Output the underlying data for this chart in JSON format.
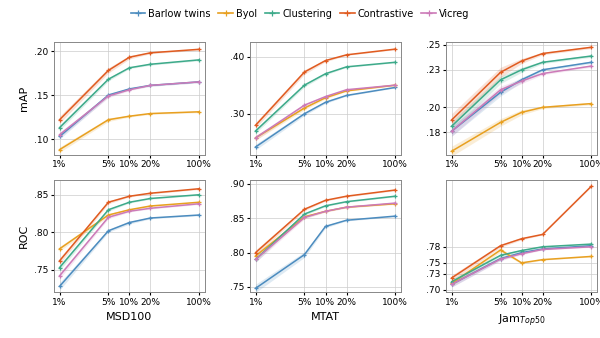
{
  "x_labels": [
    "1%",
    "5%",
    "10%",
    "20%",
    "100%"
  ],
  "x_vals_log": [
    1,
    5,
    10,
    20,
    100
  ],
  "methods": [
    "Barlow twins",
    "Byol",
    "Clustering",
    "Contrastive",
    "Vicreg"
  ],
  "colors": {
    "Barlow twins": "#4c8cbf",
    "Byol": "#e8a020",
    "Clustering": "#3daa8a",
    "Contrastive": "#e05b20",
    "Vicreg": "#cc7ab8"
  },
  "actual_data": {
    "MSD100_mAP": {
      "Barlow twins": [
        0.103,
        0.15,
        0.157,
        0.161,
        0.165
      ],
      "Byol": [
        0.088,
        0.122,
        0.126,
        0.129,
        0.131
      ],
      "Clustering": [
        0.113,
        0.168,
        0.181,
        0.185,
        0.19
      ],
      "Contrastive": [
        0.122,
        0.178,
        0.193,
        0.198,
        0.202
      ],
      "Vicreg": [
        0.105,
        0.149,
        0.156,
        0.161,
        0.165
      ]
    },
    "MSD100_ROC": {
      "Barlow twins": [
        0.728,
        0.802,
        0.813,
        0.819,
        0.823
      ],
      "Byol": [
        0.778,
        0.823,
        0.83,
        0.835,
        0.84
      ],
      "Clustering": [
        0.753,
        0.83,
        0.84,
        0.845,
        0.85
      ],
      "Contrastive": [
        0.762,
        0.84,
        0.848,
        0.852,
        0.858
      ],
      "Vicreg": [
        0.742,
        0.82,
        0.828,
        0.832,
        0.838
      ]
    },
    "MTAT_mAP": {
      "Barlow twins": [
        0.242,
        0.3,
        0.32,
        0.332,
        0.346
      ],
      "Byol": [
        0.258,
        0.31,
        0.328,
        0.34,
        0.35
      ],
      "Clustering": [
        0.27,
        0.35,
        0.37,
        0.382,
        0.39
      ],
      "Contrastive": [
        0.28,
        0.373,
        0.393,
        0.403,
        0.413
      ],
      "Vicreg": [
        0.258,
        0.315,
        0.33,
        0.342,
        0.35
      ]
    },
    "MTAT_ROC": {
      "Barlow twins": [
        0.748,
        0.797,
        0.838,
        0.847,
        0.853
      ],
      "Byol": [
        0.795,
        0.852,
        0.86,
        0.866,
        0.871
      ],
      "Clustering": [
        0.79,
        0.856,
        0.868,
        0.874,
        0.882
      ],
      "Contrastive": [
        0.8,
        0.863,
        0.876,
        0.882,
        0.891
      ],
      "Vicreg": [
        0.79,
        0.851,
        0.86,
        0.866,
        0.872
      ]
    },
    "Jam_mAP": {
      "Barlow twins": [
        0.181,
        0.212,
        0.222,
        0.23,
        0.236
      ],
      "Byol": [
        0.165,
        0.188,
        0.196,
        0.2,
        0.203
      ],
      "Clustering": [
        0.185,
        0.222,
        0.23,
        0.236,
        0.241
      ],
      "Contrastive": [
        0.19,
        0.228,
        0.237,
        0.243,
        0.248
      ],
      "Vicreg": [
        0.181,
        0.214,
        0.221,
        0.227,
        0.233
      ]
    },
    "Jam_ROC": {
      "Barlow twins": [
        0.71,
        0.758,
        0.769,
        0.776,
        0.782
      ],
      "Byol": [
        0.712,
        0.774,
        0.75,
        0.756,
        0.762
      ],
      "Clustering": [
        0.715,
        0.764,
        0.773,
        0.78,
        0.785
      ],
      "Contrastive": [
        0.722,
        0.782,
        0.795,
        0.803,
        0.893
      ],
      "Vicreg": [
        0.71,
        0.757,
        0.767,
        0.775,
        0.78
      ]
    }
  },
  "actual_std": {
    "MSD100_mAP": {
      "Barlow twins": [
        0.003,
        0.002,
        0.001,
        0.001,
        0.001
      ],
      "Byol": [
        0.003,
        0.002,
        0.001,
        0.001,
        0.001
      ],
      "Clustering": [
        0.003,
        0.002,
        0.001,
        0.001,
        0.001
      ],
      "Contrastive": [
        0.004,
        0.003,
        0.002,
        0.001,
        0.001
      ],
      "Vicreg": [
        0.003,
        0.002,
        0.001,
        0.001,
        0.001
      ]
    },
    "MSD100_ROC": {
      "Barlow twins": [
        0.005,
        0.002,
        0.002,
        0.001,
        0.001
      ],
      "Byol": [
        0.003,
        0.002,
        0.001,
        0.001,
        0.001
      ],
      "Clustering": [
        0.004,
        0.002,
        0.001,
        0.001,
        0.001
      ],
      "Contrastive": [
        0.004,
        0.002,
        0.001,
        0.001,
        0.001
      ],
      "Vicreg": [
        0.004,
        0.002,
        0.001,
        0.001,
        0.001
      ]
    },
    "MTAT_mAP": {
      "Barlow twins": [
        0.005,
        0.003,
        0.002,
        0.001,
        0.001
      ],
      "Byol": [
        0.004,
        0.003,
        0.002,
        0.001,
        0.001
      ],
      "Clustering": [
        0.004,
        0.003,
        0.002,
        0.001,
        0.001
      ],
      "Contrastive": [
        0.005,
        0.004,
        0.002,
        0.001,
        0.001
      ],
      "Vicreg": [
        0.004,
        0.003,
        0.002,
        0.001,
        0.001
      ]
    },
    "MTAT_ROC": {
      "Barlow twins": [
        0.006,
        0.004,
        0.002,
        0.001,
        0.001
      ],
      "Byol": [
        0.004,
        0.002,
        0.001,
        0.001,
        0.001
      ],
      "Clustering": [
        0.004,
        0.002,
        0.001,
        0.001,
        0.001
      ],
      "Contrastive": [
        0.004,
        0.002,
        0.001,
        0.001,
        0.001
      ],
      "Vicreg": [
        0.004,
        0.002,
        0.001,
        0.001,
        0.001
      ]
    },
    "Jam_mAP": {
      "Barlow twins": [
        0.004,
        0.003,
        0.002,
        0.001,
        0.001
      ],
      "Byol": [
        0.004,
        0.003,
        0.002,
        0.001,
        0.001
      ],
      "Clustering": [
        0.004,
        0.003,
        0.002,
        0.001,
        0.001
      ],
      "Contrastive": [
        0.005,
        0.004,
        0.002,
        0.001,
        0.001
      ],
      "Vicreg": [
        0.004,
        0.003,
        0.002,
        0.001,
        0.001
      ]
    },
    "Jam_ROC": {
      "Barlow twins": [
        0.005,
        0.003,
        0.002,
        0.001,
        0.001
      ],
      "Byol": [
        0.005,
        0.004,
        0.002,
        0.001,
        0.001
      ],
      "Clustering": [
        0.005,
        0.003,
        0.002,
        0.001,
        0.001
      ],
      "Contrastive": [
        0.005,
        0.003,
        0.002,
        0.001,
        0.001
      ],
      "Vicreg": [
        0.005,
        0.003,
        0.002,
        0.001,
        0.001
      ]
    }
  },
  "ylims": {
    "MSD100_mAP": [
      0.082,
      0.21
    ],
    "MSD100_ROC": [
      0.72,
      0.87
    ],
    "MTAT_mAP": [
      0.228,
      0.425
    ],
    "MTAT_ROC": [
      0.742,
      0.906
    ],
    "Jam_mAP": [
      0.162,
      0.252
    ],
    "Jam_ROC": [
      0.695,
      0.905
    ]
  },
  "yticks": {
    "MSD100_mAP": [
      0.1,
      0.15,
      0.2
    ],
    "MSD100_ROC": [
      0.75,
      0.8,
      0.85
    ],
    "MTAT_mAP": [
      0.3,
      0.4
    ],
    "MTAT_ROC": [
      0.75,
      0.8,
      0.85,
      0.9
    ],
    "Jam_mAP": [
      0.18,
      0.2,
      0.23,
      0.25
    ],
    "Jam_ROC": [
      0.7,
      0.73,
      0.75,
      0.78
    ]
  },
  "row_labels": [
    "mAP",
    "ROC"
  ],
  "col_labels": [
    "MSD100",
    "MTAT",
    "Jam$_{Top50}$"
  ],
  "plot_keys": [
    [
      "MSD100_mAP",
      "MTAT_mAP",
      "Jam_mAP"
    ],
    [
      "MSD100_ROC",
      "MTAT_ROC",
      "Jam_ROC"
    ]
  ]
}
